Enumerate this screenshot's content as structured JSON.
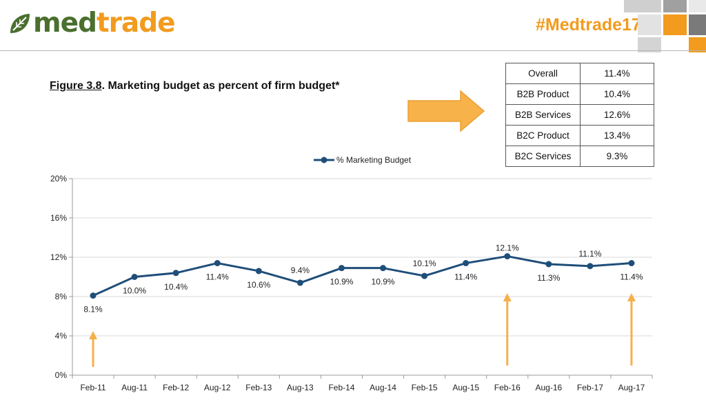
{
  "header": {
    "logo_part1": "med",
    "logo_part2": "trade",
    "hashtag": "#Medtrade17",
    "colors": {
      "brand_green": "#4a6f2e",
      "brand_orange": "#f29b1e"
    }
  },
  "figure": {
    "number": "Figure 3.8",
    "title": ".  Marketing budget as percent of firm budget*"
  },
  "summary_table": [
    {
      "label": "Overall",
      "value": "11.4%"
    },
    {
      "label": "B2B Product",
      "value": "10.4%"
    },
    {
      "label": "B2B Services",
      "value": "12.6%"
    },
    {
      "label": "B2C Product",
      "value": "13.4%"
    },
    {
      "label": "B2C Services",
      "value": "9.3%"
    }
  ],
  "chart_data": {
    "type": "line",
    "categories": [
      "Feb-11",
      "Aug-11",
      "Feb-12",
      "Aug-12",
      "Feb-13",
      "Aug-13",
      "Feb-14",
      "Aug-14",
      "Feb-15",
      "Aug-15",
      "Feb-16",
      "Aug-16",
      "Feb-17",
      "Aug-17"
    ],
    "series": [
      {
        "name": "% Marketing Budget",
        "color": "#1f4e79",
        "values": [
          8.1,
          10.0,
          10.4,
          11.4,
          10.6,
          9.4,
          10.9,
          10.9,
          10.1,
          11.4,
          12.1,
          11.3,
          11.1,
          11.4
        ],
        "labels": [
          "8.1%",
          "10.0%",
          "10.4%",
          "11.4%",
          "10.6%",
          "9.4%",
          "10.9%",
          "10.9%",
          "10.1%",
          "11.4%",
          "12.1%",
          "11.3%",
          "11.1%",
          "11.4%"
        ]
      }
    ],
    "y_ticks": [
      0,
      4,
      8,
      12,
      16,
      20
    ],
    "y_tick_labels": [
      "0%",
      "4%",
      "8%",
      "12%",
      "16%",
      "20%"
    ],
    "ylim": [
      0,
      20
    ],
    "grid": true,
    "legend_position": "top",
    "annotations": {
      "up_arrows_at": [
        "Feb-11",
        "Feb-16",
        "Aug-17"
      ],
      "arrow_color": "#f5b04a"
    }
  }
}
